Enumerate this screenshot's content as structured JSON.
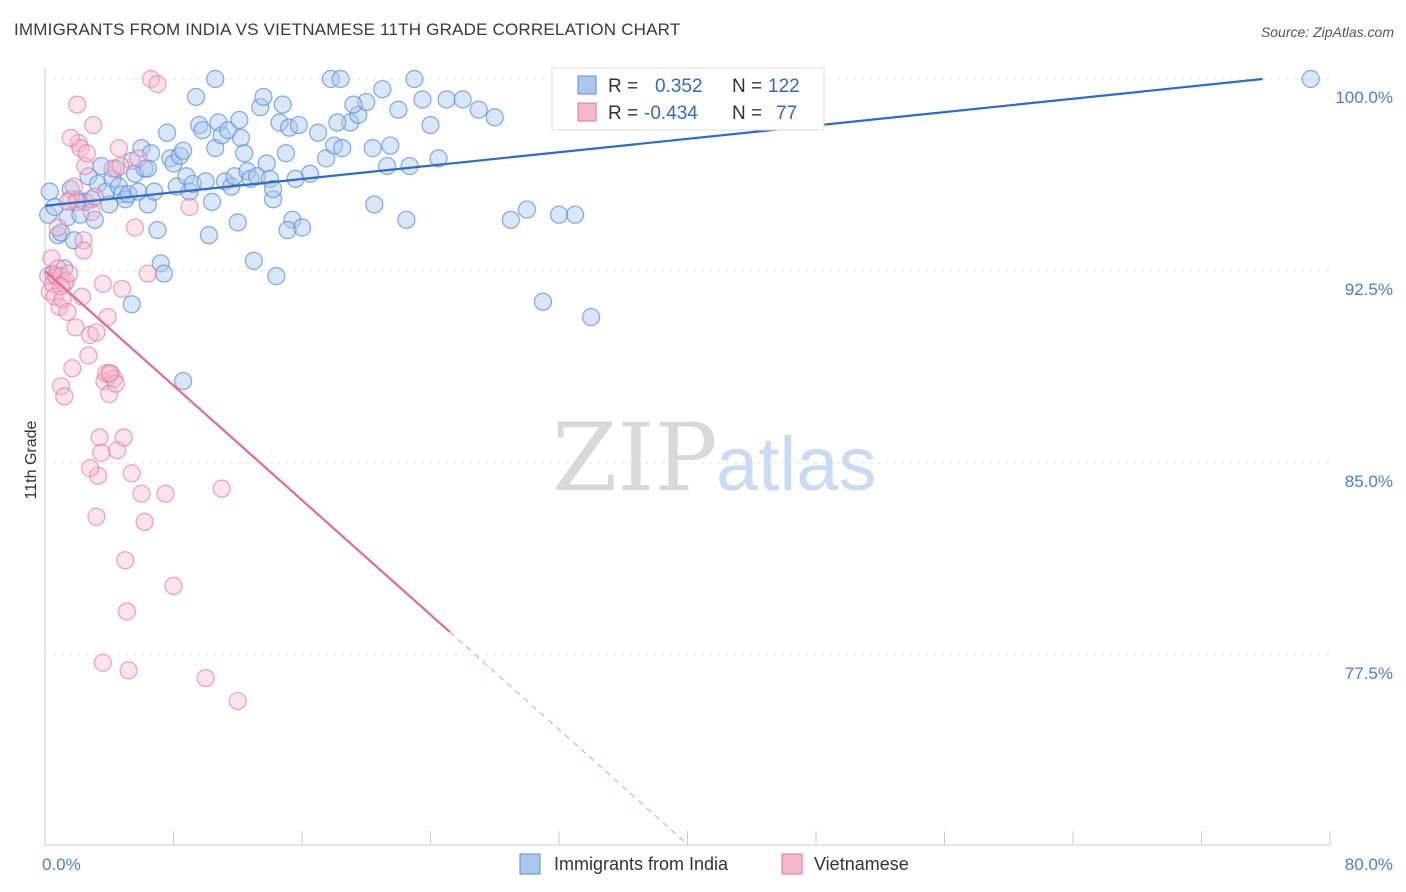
{
  "title": "IMMIGRANTS FROM INDIA VS VIETNAMESE 11TH GRADE CORRELATION CHART",
  "source": "Source: ZipAtlas.com",
  "watermark": {
    "zip": "ZIP",
    "atlas": "atlas"
  },
  "colors": {
    "blue": "#5b8fd9",
    "blue_fill": "#aac7ee",
    "pink": "#e5739b",
    "pink_fill": "#f4b8cc",
    "blue_line": "#2f6bc4",
    "pink_line": "#e06c98",
    "tick_text": "#4a7fd0",
    "grid": "#e3e3e3"
  },
  "legend": {
    "rows": [
      {
        "r_label": "R =",
        "r_value": "0.352",
        "n_label": "N =",
        "n_value": "122"
      },
      {
        "r_label": "R =",
        "r_value": "-0.434",
        "n_label": "N =",
        "n_value": "77"
      }
    ]
  },
  "bottom_legend": [
    "Immigrants from India",
    "Vietnamese"
  ],
  "chart_data": {
    "type": "scatter",
    "title": "IMMIGRANTS FROM INDIA VS VIETNAMESE 11TH GRADE CORRELATION CHART",
    "xlabel": "",
    "ylabel": "11th Grade",
    "xlim": [
      0,
      80
    ],
    "ylim": [
      71.0,
      101.5
    ],
    "x_tick_labels": [
      "0.0%",
      "80.0%"
    ],
    "y_ticks": [
      77.5,
      85.0,
      92.5,
      100.0
    ],
    "y_tick_labels": [
      "77.5%",
      "85.0%",
      "92.5%",
      "100.0%"
    ],
    "grid": true,
    "legend_position": "top-center",
    "series": [
      {
        "name": "Immigrants from India",
        "color": "#5b8fd9",
        "r": 0.352,
        "n": 122,
        "trend": {
          "x": [
            0,
            75.8
          ],
          "y": [
            95.05,
            100.0
          ]
        },
        "points": [
          [
            0.2,
            94.7
          ],
          [
            0.3,
            95.6
          ],
          [
            0.5,
            92.4
          ],
          [
            0.6,
            95.0
          ],
          [
            0.8,
            93.9
          ],
          [
            1.0,
            94.0
          ],
          [
            1.2,
            92.6
          ],
          [
            1.4,
            94.6
          ],
          [
            1.6,
            95.7
          ],
          [
            1.8,
            93.7
          ],
          [
            2.0,
            95.3
          ],
          [
            2.2,
            94.7
          ],
          [
            2.5,
            95.2
          ],
          [
            2.7,
            96.2
          ],
          [
            2.9,
            95.3
          ],
          [
            3.1,
            94.5
          ],
          [
            3.3,
            95.9
          ],
          [
            3.5,
            96.6
          ],
          [
            3.8,
            95.6
          ],
          [
            4.0,
            95.1
          ],
          [
            4.2,
            96.1
          ],
          [
            4.4,
            96.5
          ],
          [
            4.6,
            95.8
          ],
          [
            4.8,
            95.5
          ],
          [
            5.0,
            95.3
          ],
          [
            5.2,
            95.5
          ],
          [
            5.4,
            96.8
          ],
          [
            5.6,
            96.3
          ],
          [
            5.8,
            95.6
          ],
          [
            6.0,
            97.3
          ],
          [
            6.2,
            96.5
          ],
          [
            6.4,
            95.1
          ],
          [
            6.6,
            97.1
          ],
          [
            6.8,
            95.6
          ],
          [
            7.0,
            94.1
          ],
          [
            7.2,
            92.8
          ],
          [
            7.4,
            92.4
          ],
          [
            7.6,
            97.9
          ],
          [
            7.8,
            96.9
          ],
          [
            8.0,
            96.7
          ],
          [
            8.2,
            95.8
          ],
          [
            8.4,
            97.0
          ],
          [
            8.6,
            97.2
          ],
          [
            8.8,
            96.2
          ],
          [
            9.0,
            95.6
          ],
          [
            9.2,
            95.9
          ],
          [
            9.4,
            99.3
          ],
          [
            9.6,
            98.2
          ],
          [
            9.8,
            98.0
          ],
          [
            10.0,
            96.0
          ],
          [
            10.2,
            93.9
          ],
          [
            10.4,
            95.2
          ],
          [
            10.6,
            97.3
          ],
          [
            10.8,
            98.3
          ],
          [
            11.0,
            97.8
          ],
          [
            11.2,
            96.0
          ],
          [
            11.4,
            98.0
          ],
          [
            11.6,
            95.8
          ],
          [
            11.8,
            96.2
          ],
          [
            12.0,
            94.4
          ],
          [
            12.2,
            97.7
          ],
          [
            12.4,
            97.1
          ],
          [
            12.6,
            96.4
          ],
          [
            12.8,
            96.1
          ],
          [
            13.0,
            92.9
          ],
          [
            13.2,
            96.2
          ],
          [
            13.4,
            98.9
          ],
          [
            13.6,
            99.3
          ],
          [
            13.8,
            96.7
          ],
          [
            14.0,
            96.1
          ],
          [
            14.2,
            95.3
          ],
          [
            14.4,
            92.3
          ],
          [
            14.6,
            98.3
          ],
          [
            14.8,
            99.0
          ],
          [
            15.0,
            97.1
          ],
          [
            15.2,
            98.1
          ],
          [
            15.4,
            94.5
          ],
          [
            15.6,
            96.1
          ],
          [
            15.8,
            98.2
          ],
          [
            16.0,
            94.2
          ],
          [
            16.5,
            96.3
          ],
          [
            17.0,
            97.9
          ],
          [
            17.5,
            96.9
          ],
          [
            18.0,
            97.4
          ],
          [
            18.5,
            97.3
          ],
          [
            19.0,
            98.3
          ],
          [
            19.5,
            98.6
          ],
          [
            20.0,
            99.1
          ],
          [
            20.5,
            95.1
          ],
          [
            21.0,
            99.6
          ],
          [
            21.5,
            97.4
          ],
          [
            22.0,
            98.8
          ],
          [
            22.5,
            94.5
          ],
          [
            23.0,
            100.0
          ],
          [
            23.5,
            99.2
          ],
          [
            24.0,
            98.2
          ],
          [
            24.5,
            96.9
          ],
          [
            25.0,
            99.2
          ],
          [
            26.0,
            99.2
          ],
          [
            27.0,
            98.8
          ],
          [
            28.0,
            98.5
          ],
          [
            29.0,
            94.5
          ],
          [
            30.0,
            94.9
          ],
          [
            31.0,
            91.3
          ],
          [
            32.0,
            94.7
          ],
          [
            33.0,
            94.7
          ],
          [
            34.0,
            90.7
          ],
          [
            18.2,
            98.3
          ],
          [
            19.2,
            99.0
          ],
          [
            10.6,
            100.0
          ],
          [
            17.8,
            100.0
          ],
          [
            18.4,
            100.0
          ],
          [
            12.1,
            98.4
          ],
          [
            8.6,
            88.2
          ],
          [
            5.4,
            91.2
          ],
          [
            6.4,
            96.5
          ],
          [
            14.2,
            95.7
          ],
          [
            15.1,
            94.1
          ],
          [
            21.3,
            96.6
          ],
          [
            22.7,
            96.6
          ],
          [
            20.4,
            97.3
          ],
          [
            78.8,
            100.0
          ]
        ]
      },
      {
        "name": "Vietnamese",
        "color": "#e5739b",
        "r": -0.434,
        "n": 77,
        "trend_solid": {
          "x": [
            0,
            25.2
          ],
          "y": [
            92.5,
            78.4
          ]
        },
        "trend_dashed": {
          "x": [
            25.2,
            40.0
          ],
          "y": [
            78.4,
            70.1
          ]
        },
        "points": [
          [
            0.2,
            92.3
          ],
          [
            0.3,
            91.7
          ],
          [
            0.4,
            93.0
          ],
          [
            0.5,
            92.0
          ],
          [
            0.6,
            91.5
          ],
          [
            0.7,
            92.3
          ],
          [
            0.8,
            92.6
          ],
          [
            0.9,
            91.1
          ],
          [
            1.0,
            92.3
          ],
          [
            1.1,
            91.4
          ],
          [
            1.2,
            92.0
          ],
          [
            1.3,
            92.1
          ],
          [
            1.4,
            90.9
          ],
          [
            1.5,
            92.4
          ],
          [
            1.6,
            95.3
          ],
          [
            1.7,
            88.7
          ],
          [
            1.8,
            95.8
          ],
          [
            1.9,
            90.3
          ],
          [
            2.0,
            95.2
          ],
          [
            2.1,
            97.5
          ],
          [
            2.2,
            97.3
          ],
          [
            2.3,
            91.5
          ],
          [
            2.4,
            93.7
          ],
          [
            2.5,
            96.6
          ],
          [
            2.6,
            97.1
          ],
          [
            2.7,
            89.2
          ],
          [
            2.8,
            90.0
          ],
          [
            2.9,
            94.8
          ],
          [
            3.0,
            98.2
          ],
          [
            3.1,
            95.4
          ],
          [
            3.2,
            90.1
          ],
          [
            3.3,
            84.5
          ],
          [
            3.4,
            86.0
          ],
          [
            3.5,
            85.4
          ],
          [
            3.6,
            92.0
          ],
          [
            3.7,
            88.2
          ],
          [
            3.8,
            88.5
          ],
          [
            3.9,
            90.7
          ],
          [
            4.0,
            87.7
          ],
          [
            4.1,
            88.5
          ],
          [
            4.2,
            96.5
          ],
          [
            4.3,
            88.3
          ],
          [
            4.4,
            88.1
          ],
          [
            4.5,
            85.5
          ],
          [
            4.6,
            97.3
          ],
          [
            4.7,
            96.6
          ],
          [
            4.8,
            91.8
          ],
          [
            4.9,
            86.0
          ],
          [
            5.0,
            81.2
          ],
          [
            5.1,
            79.2
          ],
          [
            5.2,
            76.9
          ],
          [
            5.4,
            84.6
          ],
          [
            5.6,
            94.2
          ],
          [
            5.8,
            96.9
          ],
          [
            6.0,
            83.8
          ],
          [
            6.2,
            82.7
          ],
          [
            6.4,
            92.4
          ],
          [
            6.6,
            100.0
          ],
          [
            7.0,
            99.8
          ],
          [
            7.5,
            83.8
          ],
          [
            8.0,
            80.2
          ],
          [
            9.0,
            95.0
          ],
          [
            10.0,
            76.6
          ],
          [
            11.0,
            84.0
          ],
          [
            12.0,
            75.7
          ],
          [
            1.0,
            88.0
          ],
          [
            1.2,
            87.6
          ],
          [
            1.4,
            95.2
          ],
          [
            1.6,
            97.7
          ],
          [
            2.0,
            99.0
          ],
          [
            2.4,
            93.3
          ],
          [
            2.8,
            84.8
          ],
          [
            3.2,
            82.9
          ],
          [
            3.6,
            77.2
          ],
          [
            4.0,
            88.5
          ],
          [
            0.8,
            94.2
          ],
          [
            1.0,
            91.9
          ]
        ]
      }
    ]
  }
}
